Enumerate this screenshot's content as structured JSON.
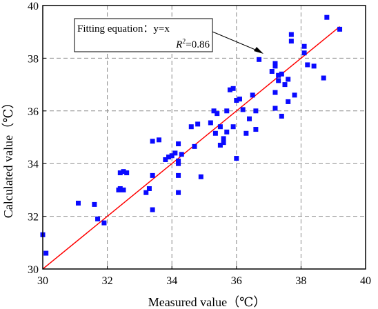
{
  "chart_data": {
    "type": "scatter",
    "title": "",
    "xlabel": "Measured value（℃）",
    "ylabel": "Calculated value（℃）",
    "xlim": [
      30,
      40
    ],
    "ylim": [
      30,
      40
    ],
    "xticks": [
      "30",
      "32",
      "34",
      "36",
      "38",
      "40"
    ],
    "yticks": [
      "30",
      "32",
      "34",
      "36",
      "38",
      "40"
    ],
    "grid": true,
    "grid_style": "dashed",
    "point_color": "#0a0aff",
    "line_color": "#ff0000",
    "fit_line": {
      "x": [
        30,
        39.2
      ],
      "y": [
        30,
        39.2
      ]
    },
    "annotation": {
      "line1": "Fitting equation：y=x",
      "r2_symbol": "R",
      "r2_sup": "2",
      "r2_value": "=0.86"
    },
    "points": [
      [
        30.0,
        31.3
      ],
      [
        30.1,
        30.6
      ],
      [
        31.1,
        32.5
      ],
      [
        31.6,
        32.45
      ],
      [
        31.7,
        31.9
      ],
      [
        31.9,
        31.75
      ],
      [
        32.35,
        33.0
      ],
      [
        32.4,
        33.05
      ],
      [
        32.4,
        33.65
      ],
      [
        32.5,
        33.7
      ],
      [
        32.5,
        33.0
      ],
      [
        32.6,
        33.65
      ],
      [
        33.2,
        32.9
      ],
      [
        33.3,
        33.05
      ],
      [
        33.4,
        32.25
      ],
      [
        33.4,
        33.55
      ],
      [
        33.4,
        34.85
      ],
      [
        33.6,
        34.9
      ],
      [
        33.8,
        34.15
      ],
      [
        33.9,
        34.25
      ],
      [
        34.0,
        34.3
      ],
      [
        34.1,
        34.4
      ],
      [
        34.2,
        34.75
      ],
      [
        34.2,
        34.1
      ],
      [
        34.2,
        34.0
      ],
      [
        34.2,
        33.55
      ],
      [
        34.2,
        32.9
      ],
      [
        34.3,
        34.35
      ],
      [
        34.6,
        35.4
      ],
      [
        34.7,
        34.65
      ],
      [
        34.8,
        35.5
      ],
      [
        34.9,
        33.5
      ],
      [
        35.2,
        35.55
      ],
      [
        35.3,
        36.0
      ],
      [
        35.35,
        35.15
      ],
      [
        35.4,
        35.9
      ],
      [
        35.5,
        35.4
      ],
      [
        35.5,
        34.7
      ],
      [
        35.6,
        34.8
      ],
      [
        35.6,
        34.95
      ],
      [
        35.7,
        36.0
      ],
      [
        35.7,
        35.2
      ],
      [
        35.8,
        36.8
      ],
      [
        35.9,
        36.85
      ],
      [
        35.9,
        35.4
      ],
      [
        36.0,
        36.4
      ],
      [
        36.0,
        34.2
      ],
      [
        36.1,
        36.45
      ],
      [
        36.2,
        36.05
      ],
      [
        36.3,
        35.15
      ],
      [
        36.4,
        35.7
      ],
      [
        36.5,
        36.6
      ],
      [
        36.6,
        35.3
      ],
      [
        36.6,
        36.0
      ],
      [
        36.7,
        37.95
      ],
      [
        37.1,
        37.5
      ],
      [
        37.2,
        37.8
      ],
      [
        37.2,
        37.7
      ],
      [
        37.2,
        36.7
      ],
      [
        37.2,
        36.1
      ],
      [
        37.3,
        37.15
      ],
      [
        37.3,
        37.35
      ],
      [
        37.4,
        37.4
      ],
      [
        37.4,
        35.8
      ],
      [
        37.5,
        37.0
      ],
      [
        37.6,
        36.35
      ],
      [
        37.6,
        37.2
      ],
      [
        37.7,
        38.9
      ],
      [
        37.7,
        38.65
      ],
      [
        37.8,
        36.6
      ],
      [
        38.1,
        38.45
      ],
      [
        38.1,
        38.2
      ],
      [
        38.2,
        37.75
      ],
      [
        38.4,
        37.7
      ],
      [
        38.7,
        37.25
      ],
      [
        38.8,
        39.55
      ],
      [
        39.2,
        39.1
      ]
    ]
  }
}
